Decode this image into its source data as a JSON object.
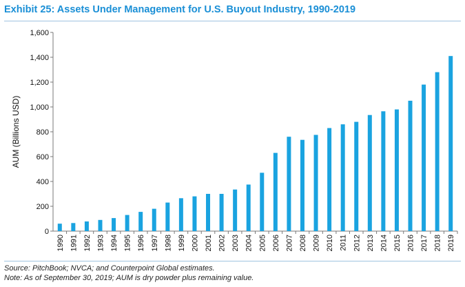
{
  "title": "Exhibit 25: Assets Under Management for U.S. Buyout Industry, 1990-2019",
  "source": "Source: PitchBook; NVCA; and Counterpoint Global estimates.",
  "note": "Note: As of September 30, 2019; AUM is dry powder plus remaining value.",
  "colors": {
    "bar": "#1aa3e0",
    "title": "#1a8fd6",
    "rule": "#9fc3e0"
  },
  "chart_data": {
    "type": "bar",
    "ylabel": "AUM (Billions USD)",
    "xlabel": "",
    "ylim": [
      0,
      1600
    ],
    "yticks": [
      0,
      200,
      400,
      600,
      800,
      1000,
      1200,
      1400,
      1600
    ],
    "ytick_labels": [
      "0",
      "200",
      "400",
      "600",
      "800",
      "1,000",
      "1,200",
      "1,400",
      "1,600"
    ],
    "grid": false,
    "categories": [
      "1990",
      "1991",
      "1992",
      "1993",
      "1994",
      "1995",
      "1996",
      "1997",
      "1998",
      "1999",
      "2000",
      "2001",
      "2002",
      "2003",
      "2004",
      "2005",
      "2006",
      "2007",
      "2008",
      "2009",
      "2010",
      "2011",
      "2012",
      "2013",
      "2014",
      "2015",
      "2016",
      "2017",
      "2018",
      "2019"
    ],
    "values": [
      60,
      65,
      78,
      90,
      105,
      130,
      155,
      180,
      230,
      265,
      280,
      300,
      300,
      335,
      375,
      470,
      630,
      760,
      735,
      775,
      830,
      860,
      880,
      935,
      965,
      980,
      1050,
      1180,
      1280,
      1410
    ]
  }
}
